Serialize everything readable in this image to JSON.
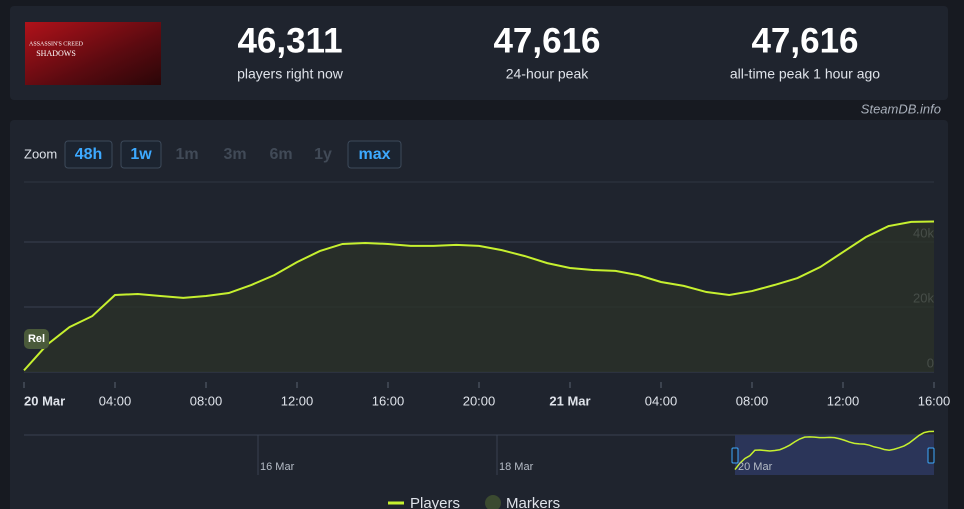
{
  "header": {
    "cover_text_top": "ASSASSIN'S CREED",
    "cover_text_bottom": "SHADOWS",
    "stats": [
      {
        "value": "46,311",
        "label": "players right now"
      },
      {
        "value": "47,616",
        "label": "24-hour peak"
      },
      {
        "value": "47,616",
        "label": "all-time peak 1 hour ago"
      }
    ]
  },
  "source": "SteamDB.info",
  "zoom": {
    "label": "Zoom",
    "options": [
      {
        "label": "48h",
        "state": "active"
      },
      {
        "label": "1w",
        "state": "active"
      },
      {
        "label": "1m",
        "state": "disabled"
      },
      {
        "label": "3m",
        "state": "disabled"
      },
      {
        "label": "6m",
        "state": "disabled"
      },
      {
        "label": "1y",
        "state": "disabled"
      },
      {
        "label": "max",
        "state": "active"
      }
    ]
  },
  "marker_label": "Rel",
  "navigator_labels": [
    "16 Mar",
    "18 Mar",
    "20 Mar"
  ],
  "markers_legend": "Markers",
  "chart_data": {
    "type": "line",
    "x": [
      0,
      1,
      2,
      3,
      4,
      5,
      6,
      7,
      8,
      9,
      10,
      11,
      12,
      13,
      14,
      15,
      16,
      17,
      18,
      19,
      20,
      21,
      22,
      23,
      24,
      25,
      26,
      27,
      28,
      29,
      30,
      31,
      32,
      33,
      34,
      35,
      36,
      37,
      38,
      39,
      40
    ],
    "series": [
      {
        "name": "Players",
        "color": "#c6f02f",
        "values": [
          500,
          8300,
          13800,
          17200,
          23700,
          24000,
          23400,
          22800,
          23400,
          24300,
          26800,
          29800,
          33800,
          37200,
          39400,
          39700,
          39400,
          38800,
          38800,
          39100,
          38800,
          37500,
          35700,
          33500,
          32000,
          31400,
          31100,
          29800,
          27700,
          26500,
          24600,
          23700,
          24900,
          26800,
          28900,
          32300,
          36900,
          41500,
          44900,
          46200,
          46300
        ]
      }
    ],
    "xlim": [
      0,
      40
    ],
    "xticks": [
      {
        "value": 0,
        "label": "20 Mar"
      },
      {
        "value": 4,
        "label": "04:00"
      },
      {
        "value": 8,
        "label": "08:00"
      },
      {
        "value": 12,
        "label": "12:00"
      },
      {
        "value": 16,
        "label": "16:00"
      },
      {
        "value": 20,
        "label": "20:00"
      },
      {
        "value": 24,
        "label": "21 Mar"
      },
      {
        "value": 28,
        "label": "04:00"
      },
      {
        "value": 32,
        "label": "08:00"
      },
      {
        "value": 36,
        "label": "12:00"
      },
      {
        "value": 40,
        "label": "16:00"
      }
    ],
    "ylim": [
      0,
      60000
    ],
    "yticks": [
      0,
      {
        "value": 20000,
        "label": "20k"
      },
      {
        "value": 40000,
        "label": "40k"
      }
    ],
    "grid": true
  }
}
